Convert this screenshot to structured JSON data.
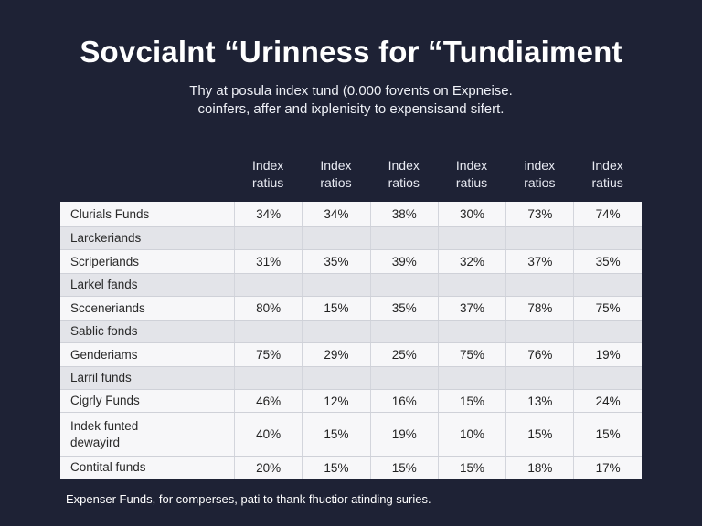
{
  "title": "Sovcialnt “Urinness for “Tundiaiment",
  "subtitle": [
    "Thy at posula index tund (0.000 fovents on Expneise.",
    "coinfers, affer and ixplenisity to expensisand sifert."
  ],
  "columns": [
    [
      "Index",
      "ratius"
    ],
    [
      "Index",
      "ratios"
    ],
    [
      "Index",
      "ratios"
    ],
    [
      "Index",
      "ratius"
    ],
    [
      "index",
      "ratios"
    ],
    [
      "Index",
      "ratius"
    ]
  ],
  "rows": [
    {
      "name": "Clurials Funds",
      "values": [
        "34%",
        "34%",
        "38%",
        "30%",
        "73%",
        "74%"
      ]
    },
    {
      "name": "Larckeriands",
      "values": [
        "",
        "",
        "",
        "",
        "",
        ""
      ]
    },
    {
      "name": "Scriperiands",
      "values": [
        "31%",
        "35%",
        "39%",
        "32%",
        "37%",
        "35%"
      ]
    },
    {
      "name": "Larkel fands",
      "values": [
        "",
        "",
        "",
        "",
        "",
        ""
      ]
    },
    {
      "name": "Scceneriands",
      "values": [
        "80%",
        "15%",
        "35%",
        "37%",
        "78%",
        "75%"
      ]
    },
    {
      "name": "Sablic fonds",
      "values": [
        "",
        "",
        "",
        "",
        "",
        ""
      ]
    },
    {
      "name": "Genderiams",
      "values": [
        "75%",
        "29%",
        "25%",
        "75%",
        "76%",
        "19%"
      ]
    },
    {
      "name": "Larril funds",
      "values": [
        "",
        "",
        "",
        "",
        "",
        ""
      ]
    },
    {
      "name": "Cigrly Funds",
      "values": [
        "46%",
        "12%",
        "16%",
        "15%",
        "13%",
        "24%"
      ]
    },
    {
      "name": "Indek funted dewayird",
      "values": [
        "40%",
        "15%",
        "19%",
        "10%",
        "15%",
        "15%"
      ]
    },
    {
      "name": "Contital funds",
      "values": [
        "20%",
        "15%",
        "15%",
        "15%",
        "18%",
        "17%"
      ]
    }
  ],
  "footer": "Expenser Funds, for comperses, pati to thank fhuctior atinding suries."
}
